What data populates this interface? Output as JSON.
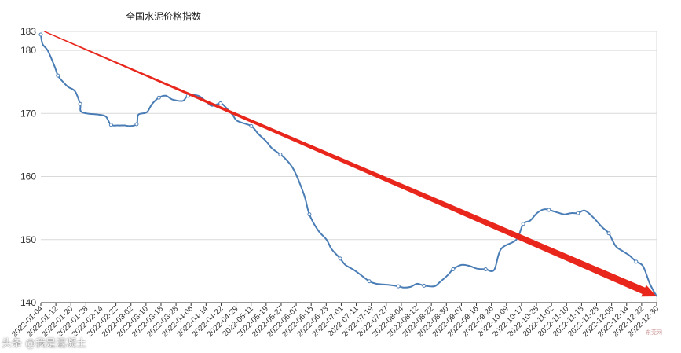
{
  "chart_data": {
    "type": "line",
    "title": "全国水泥价格指数",
    "xlabel": "",
    "ylabel": "",
    "ylim": [
      140,
      183
    ],
    "y_ticks": [
      140,
      150,
      160,
      170,
      180,
      183
    ],
    "grid": true,
    "x_tick_labels": [
      "2022-01-04",
      "2022-01-12",
      "2022-01-20",
      "2022-01-28",
      "2022-02-14",
      "2022-02-22",
      "2022-03-02",
      "2022-03-10",
      "2022-03-18",
      "2022-03-28",
      "2022-04-06",
      "2022-04-14",
      "2022-04-22",
      "2022-04-29",
      "2022-05-11",
      "2022-05-19",
      "2022-05-27",
      "2022-06-07",
      "2022-06-15",
      "2022-06-23",
      "2022-07-01",
      "2022-07-11",
      "2022-07-19",
      "2022-07-27",
      "2022-08-04",
      "2022-08-12",
      "2022-08-22",
      "2022-08-30",
      "2022-09-07",
      "2022-09-16",
      "2022-09-26",
      "2022-10-09",
      "2022-10-17",
      "2022-10-25",
      "2022-11-02",
      "2022-11-10",
      "2022-11-18",
      "2022-11-28",
      "2022-12-06",
      "2022-12-14",
      "2022-12-22",
      "2022-12-30"
    ],
    "series": [
      {
        "color": "#4a7db5",
        "points": [
          [
            "2022-01-04",
            182.5
          ],
          [
            "2022-01-05",
            181.0
          ],
          [
            "2022-01-08",
            180.0
          ],
          [
            "2022-01-12",
            177.5
          ],
          [
            "2022-01-14",
            176.0
          ],
          [
            "2022-01-17",
            175.0
          ],
          [
            "2022-01-20",
            174.2
          ],
          [
            "2022-01-24",
            173.5
          ],
          [
            "2022-01-27",
            171.5
          ],
          [
            "2022-01-28",
            170.2
          ],
          [
            "2022-02-07",
            169.8
          ],
          [
            "2022-02-11",
            169.5
          ],
          [
            "2022-02-14",
            168.2
          ],
          [
            "2022-02-18",
            168.1
          ],
          [
            "2022-02-22",
            168.1
          ],
          [
            "2022-02-25",
            168.0
          ],
          [
            "2022-03-01",
            168.3
          ],
          [
            "2022-03-02",
            169.8
          ],
          [
            "2022-03-07",
            170.2
          ],
          [
            "2022-03-10",
            171.5
          ],
          [
            "2022-03-14",
            172.5
          ],
          [
            "2022-03-18",
            172.8
          ],
          [
            "2022-03-22",
            172.2
          ],
          [
            "2022-03-28",
            172.0
          ],
          [
            "2022-03-31",
            172.8
          ],
          [
            "2022-04-06",
            172.8
          ],
          [
            "2022-04-11",
            171.8
          ],
          [
            "2022-04-14",
            171.2
          ],
          [
            "2022-04-19",
            171.6
          ],
          [
            "2022-04-22",
            171.0
          ],
          [
            "2022-04-26",
            169.8
          ],
          [
            "2022-04-29",
            168.8
          ],
          [
            "2022-05-07",
            168.0
          ],
          [
            "2022-05-11",
            166.8
          ],
          [
            "2022-05-16",
            165.5
          ],
          [
            "2022-05-19",
            164.5
          ],
          [
            "2022-05-24",
            163.5
          ],
          [
            "2022-05-27",
            162.8
          ],
          [
            "2022-06-01",
            161.0
          ],
          [
            "2022-06-07",
            157.0
          ],
          [
            "2022-06-10",
            154.0
          ],
          [
            "2022-06-15",
            151.5
          ],
          [
            "2022-06-20",
            150.0
          ],
          [
            "2022-06-23",
            148.5
          ],
          [
            "2022-06-28",
            147.0
          ],
          [
            "2022-07-01",
            146.0
          ],
          [
            "2022-07-06",
            145.2
          ],
          [
            "2022-07-11",
            144.2
          ],
          [
            "2022-07-15",
            143.4
          ],
          [
            "2022-07-19",
            143.0
          ],
          [
            "2022-07-23",
            142.9
          ],
          [
            "2022-07-27",
            142.8
          ],
          [
            "2022-08-01",
            142.6
          ],
          [
            "2022-08-04",
            142.4
          ],
          [
            "2022-08-08",
            142.5
          ],
          [
            "2022-08-12",
            143.0
          ],
          [
            "2022-08-16",
            142.7
          ],
          [
            "2022-08-22",
            142.6
          ],
          [
            "2022-08-25",
            143.2
          ],
          [
            "2022-08-30",
            144.4
          ],
          [
            "2022-09-02",
            145.3
          ],
          [
            "2022-09-07",
            146.0
          ],
          [
            "2022-09-12",
            145.8
          ],
          [
            "2022-09-16",
            145.4
          ],
          [
            "2022-09-21",
            145.3
          ],
          [
            "2022-09-26",
            145.2
          ],
          [
            "2022-09-30",
            148.5
          ],
          [
            "2022-10-09",
            150.0
          ],
          [
            "2022-10-13",
            152.5
          ],
          [
            "2022-10-17",
            153.0
          ],
          [
            "2022-10-21",
            154.2
          ],
          [
            "2022-10-25",
            154.8
          ],
          [
            "2022-10-28",
            154.7
          ],
          [
            "2022-11-02",
            154.3
          ],
          [
            "2022-11-06",
            154.0
          ],
          [
            "2022-11-10",
            154.2
          ],
          [
            "2022-11-14",
            154.2
          ],
          [
            "2022-11-18",
            154.6
          ],
          [
            "2022-11-23",
            153.5
          ],
          [
            "2022-11-28",
            152.0
          ],
          [
            "2022-12-02",
            151.0
          ],
          [
            "2022-12-06",
            149.0
          ],
          [
            "2022-12-10",
            148.2
          ],
          [
            "2022-12-14",
            147.5
          ],
          [
            "2022-12-18",
            146.5
          ],
          [
            "2022-12-22",
            145.8
          ],
          [
            "2022-12-26",
            143.0
          ],
          [
            "2022-12-30",
            141.0
          ]
        ]
      }
    ],
    "annotations": [
      {
        "type": "arrow",
        "color": "#e8261c",
        "from": [
          "2022-01-06",
          183.0
        ],
        "to": [
          "2022-12-30",
          141.0
        ]
      }
    ]
  },
  "watermarks": {
    "left": "头条 @我是混凝土",
    "right": "东莞网"
  }
}
